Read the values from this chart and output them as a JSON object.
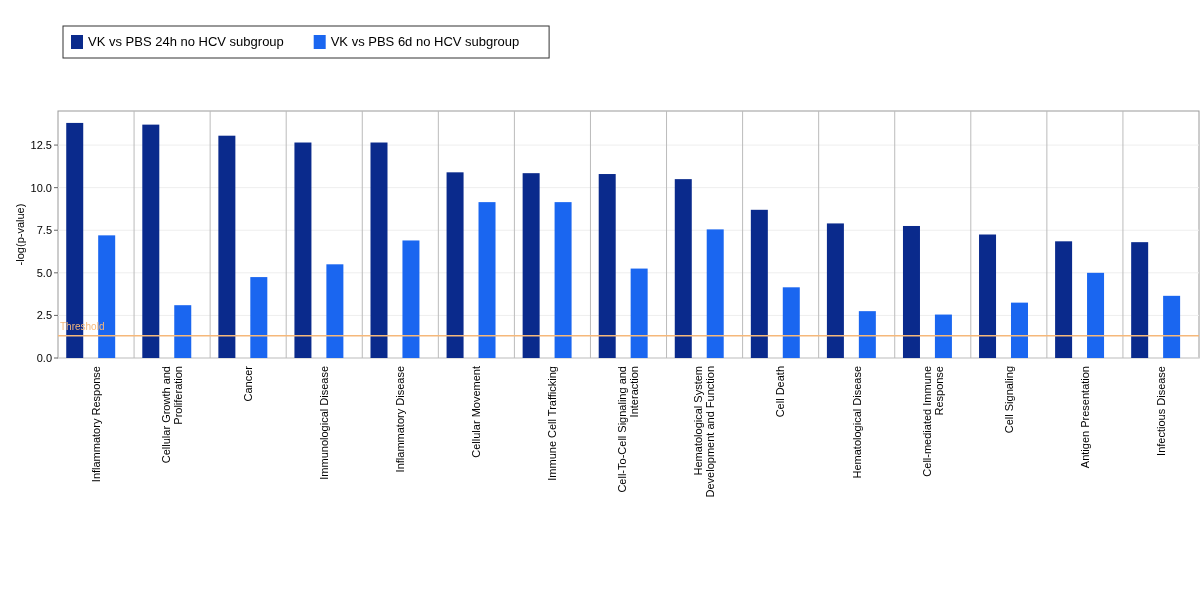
{
  "chart_data": {
    "type": "bar",
    "ylabel": "-log(p-value)",
    "categories": [
      "Inflammatory Response",
      "Cellular Growth and Proliferation",
      "Cancer",
      "Immunological Disease",
      "Inflammatory Disease",
      "Cellular Movement",
      "Immune Cell Trafficking",
      "Cell-To-Cell Signaling and Interaction",
      "Hematological System Development and Function",
      "Cell Death",
      "Hematological Disease",
      "Cell-mediated Immune Response",
      "Cell Signaling",
      "Antigen Presentation",
      "Infectious Disease"
    ],
    "series": [
      {
        "name": "VK vs PBS 24h no HCV subgroup",
        "color": "#0a2a8c",
        "values": [
          13.8,
          13.7,
          13.05,
          12.65,
          12.65,
          10.9,
          10.85,
          10.8,
          10.5,
          8.7,
          7.9,
          7.75,
          7.25,
          6.85,
          6.8
        ]
      },
      {
        "name": "VK vs PBS 6d no HCV subgroup",
        "color": "#1a66f0",
        "values": [
          7.2,
          3.1,
          4.75,
          5.5,
          6.9,
          9.15,
          9.15,
          5.25,
          7.55,
          4.15,
          2.75,
          2.55,
          3.25,
          5.0,
          3.65
        ]
      }
    ],
    "ylim": [
      0,
      14.5
    ],
    "yticks": [
      {
        "value": 0,
        "label": "0.0"
      },
      2.5,
      {
        "value": 5,
        "label": "5.0"
      },
      7.5,
      {
        "value": 10,
        "label": "10.0"
      },
      12.5
    ],
    "ref_lines": [
      {
        "axis": "y",
        "value": 1.3,
        "label": "Threshold",
        "color": "#f5b87a"
      }
    ],
    "grid": true,
    "legend": "top left"
  }
}
